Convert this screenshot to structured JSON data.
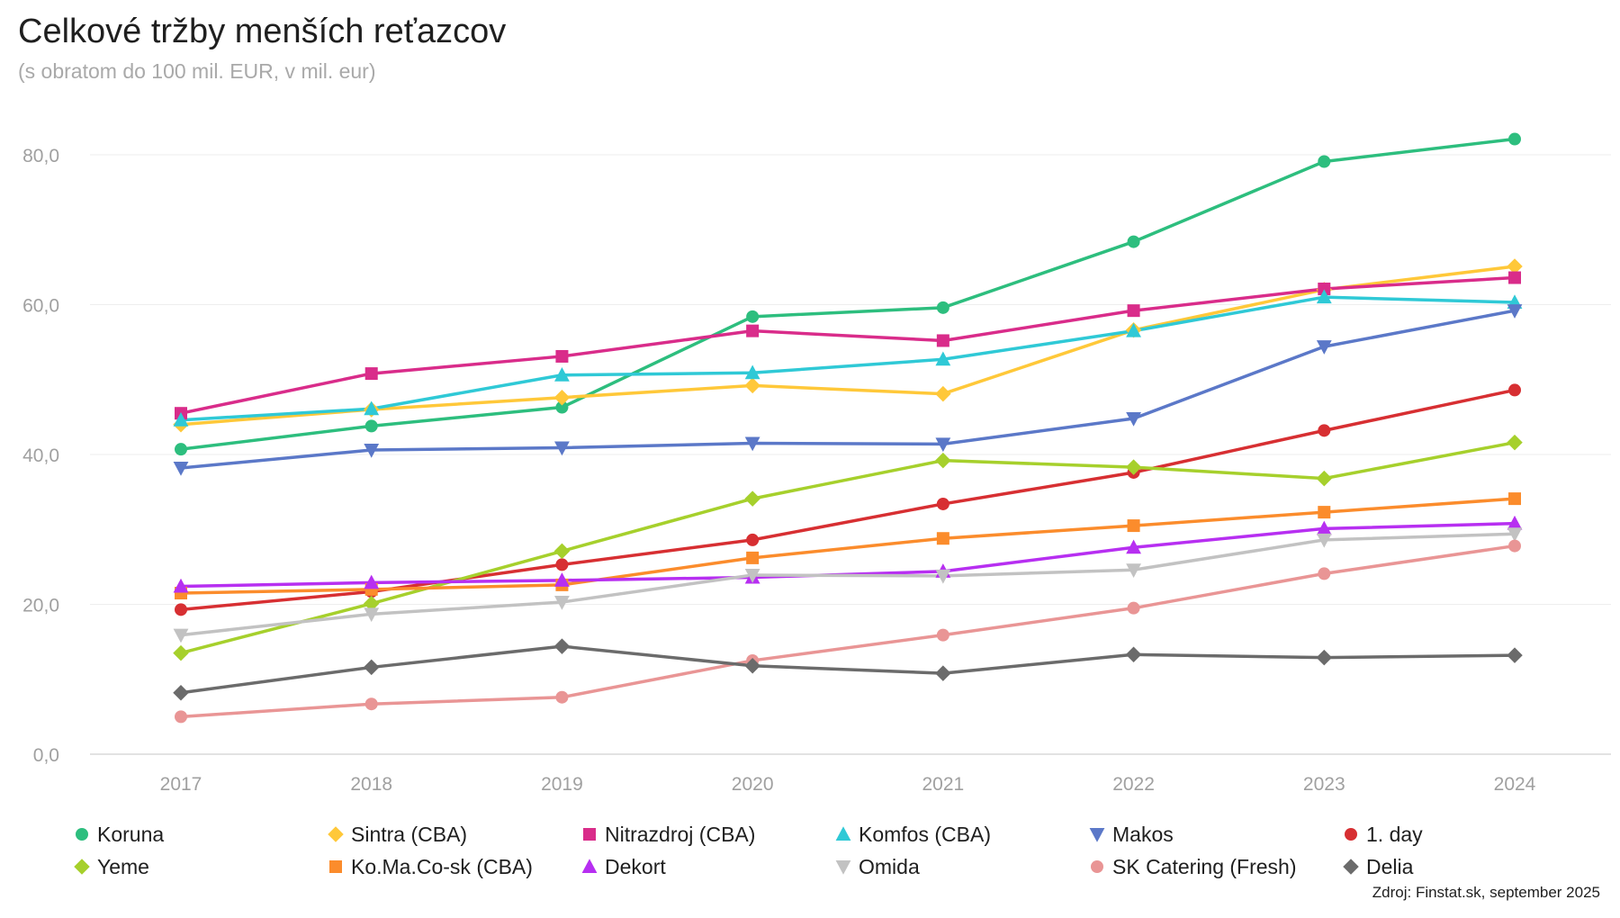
{
  "chart_data": {
    "type": "line",
    "title": "Celkové tržby menších reťazcov",
    "subtitle": "(s obratom do 100 mil. EUR, v mil. eur)",
    "source": "Zdroj: Finstat.sk, september 2025",
    "categories": [
      "2017",
      "2018",
      "2019",
      "2020",
      "2021",
      "2022",
      "2023",
      "2024"
    ],
    "ylim": [
      0,
      80
    ],
    "yticks": [
      "0,0",
      "20,0",
      "40,0",
      "60,0",
      "80,0"
    ],
    "grid": true,
    "legend_position": "bottom",
    "series": [
      {
        "name": "Koruna",
        "color": "#2dbe7e",
        "marker": "circle",
        "values": [
          40.7,
          43.8,
          46.3,
          58.4,
          59.6,
          68.4,
          79.1,
          82.1
        ]
      },
      {
        "name": "Sintra (CBA)",
        "color": "#ffc839",
        "marker": "diamond",
        "values": [
          44.0,
          46.0,
          47.6,
          49.2,
          48.1,
          56.6,
          62.0,
          65.1
        ]
      },
      {
        "name": "Nitrazdroj (CBA)",
        "color": "#d92c8a",
        "marker": "square",
        "values": [
          45.5,
          50.8,
          53.1,
          56.5,
          55.2,
          59.2,
          62.1,
          63.6
        ]
      },
      {
        "name": "Komfos (CBA)",
        "color": "#2fc9d6",
        "marker": "triangle",
        "values": [
          44.6,
          46.1,
          50.6,
          50.9,
          52.7,
          56.5,
          61.0,
          60.3
        ]
      },
      {
        "name": "Makos",
        "color": "#5b78c8",
        "marker": "triangle-down",
        "values": [
          38.2,
          40.6,
          40.9,
          41.5,
          41.4,
          44.8,
          54.4,
          59.2
        ]
      },
      {
        "name": "1. day",
        "color": "#d72f32",
        "marker": "circle",
        "values": [
          19.3,
          21.7,
          25.3,
          28.6,
          33.4,
          37.6,
          43.2,
          48.6
        ]
      },
      {
        "name": "Yeme",
        "color": "#a6d02c",
        "marker": "diamond",
        "values": [
          13.5,
          20.1,
          27.1,
          34.1,
          39.2,
          38.3,
          36.8,
          41.6
        ]
      },
      {
        "name": "Ko.Ma.Co-sk (CBA)",
        "color": "#fb8c2c",
        "marker": "square",
        "values": [
          21.5,
          22.0,
          22.6,
          26.2,
          28.8,
          30.5,
          32.3,
          34.1
        ]
      },
      {
        "name": "Dekort",
        "color": "#b72ff1",
        "marker": "triangle",
        "values": [
          22.4,
          22.9,
          23.2,
          23.6,
          24.4,
          27.6,
          30.1,
          30.8
        ]
      },
      {
        "name": "Omida",
        "color": "#c2c2c2",
        "marker": "triangle-down",
        "values": [
          15.9,
          18.7,
          20.3,
          23.9,
          23.8,
          24.6,
          28.6,
          29.4
        ]
      },
      {
        "name": "SK Catering (Fresh)",
        "color": "#e99595",
        "marker": "circle",
        "values": [
          5.0,
          6.7,
          7.6,
          12.5,
          15.9,
          19.5,
          24.1,
          27.8
        ]
      },
      {
        "name": "Delia",
        "color": "#6b6b6b",
        "marker": "diamond",
        "values": [
          8.2,
          11.6,
          14.4,
          11.8,
          10.8,
          13.3,
          12.9,
          13.2
        ]
      }
    ]
  }
}
